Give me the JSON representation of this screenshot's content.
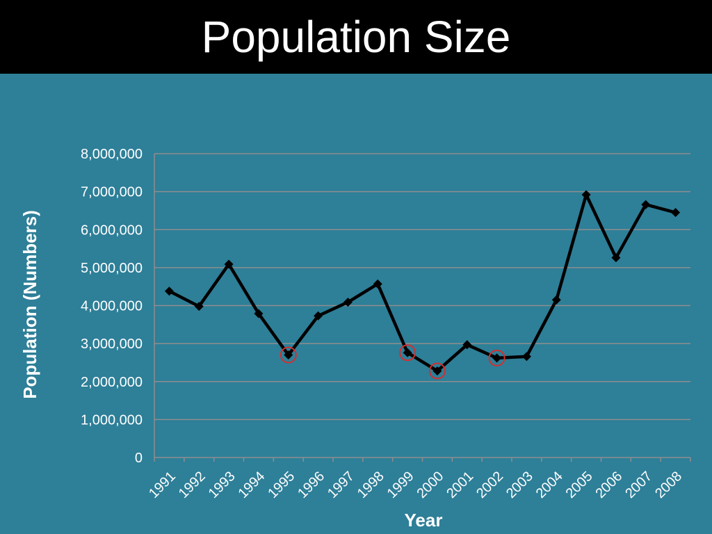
{
  "slide": {
    "title": "Population Size"
  },
  "chart_data": {
    "type": "line",
    "title": "",
    "xlabel": "Year",
    "ylabel": "Population (Numbers)",
    "categories": [
      "1991",
      "1992",
      "1993",
      "1994",
      "1995",
      "1996",
      "1997",
      "1998",
      "1999",
      "2000",
      "2001",
      "2002",
      "2003",
      "2004",
      "2005",
      "2006",
      "2007",
      "2008"
    ],
    "series": [
      {
        "values": [
          4380000,
          3980000,
          5090000,
          3790000,
          2700000,
          3730000,
          4090000,
          4570000,
          2760000,
          2280000,
          2970000,
          2620000,
          2660000,
          4150000,
          6920000,
          5260000,
          6660000,
          6450000
        ]
      }
    ],
    "highlighted_categories": [
      "1995",
      "1999",
      "2000",
      "2002"
    ],
    "ylim": [
      0,
      8000000
    ],
    "yticks": [
      0,
      1000000,
      2000000,
      3000000,
      4000000,
      5000000,
      6000000,
      7000000,
      8000000
    ],
    "ytick_labels": [
      "0",
      "1,000,000",
      "2,000,000",
      "3,000,000",
      "4,000,000",
      "5,000,000",
      "6,000,000",
      "7,000,000",
      "8,000,000"
    ],
    "grid": true,
    "legend": "none",
    "colors": {
      "line": "#000000",
      "highlight": "#d32f2f",
      "grid": "#8e8e8e",
      "text": "#ffffff",
      "background": "#2e7f98",
      "title_bar": "#000000"
    }
  }
}
